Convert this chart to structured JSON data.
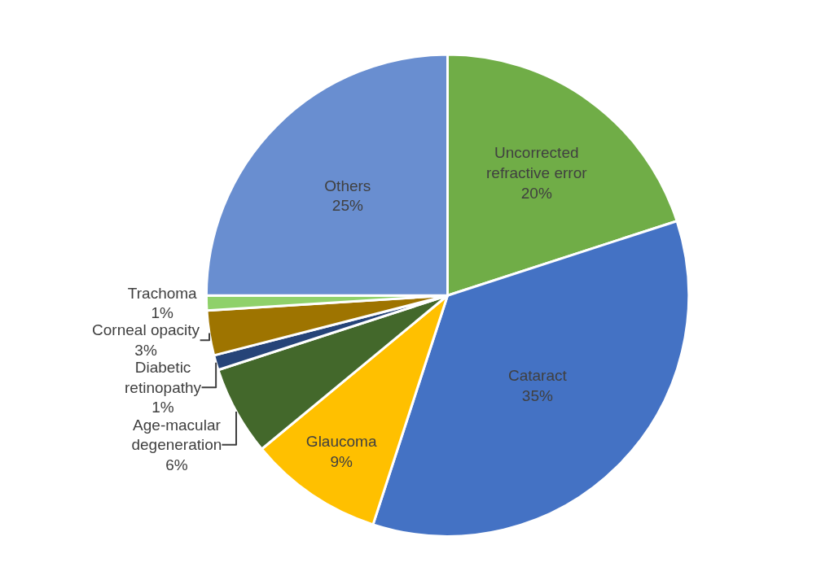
{
  "chart_data": {
    "type": "pie",
    "categories": [
      "Uncorrected refractive error",
      "Cataract",
      "Glaucoma",
      "Age-macular degeneration",
      "Diabetic retinopathy",
      "Corneal opacity",
      "Trachoma",
      "Others"
    ],
    "values": [
      20,
      35,
      9,
      6,
      1,
      3,
      1,
      25
    ],
    "value_labels": [
      "20%",
      "35%",
      "9%",
      "6%",
      "1%",
      "3%",
      "1%",
      "25%"
    ],
    "colors": [
      "#70ad47",
      "#4472c4",
      "#ffc000",
      "#43682b",
      "#264478",
      "#9e7400",
      "#8fd16a",
      "#698ed0"
    ],
    "legend": false
  }
}
